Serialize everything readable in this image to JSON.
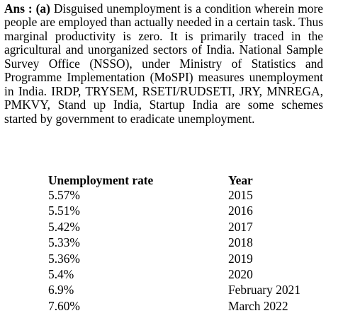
{
  "answer": {
    "label": "Ans : (a)",
    "text": "Disguised unemployment is a condition wherein more people are employed than actually needed in a certain task. Thus marginal productivity is zero. It is primarily traced in the agricultural and unorganized sectors of India. National Sample Survey Office (NSSO), under Ministry of Statistics and Programme Implementation (MoSPI) measures unemployment in India. IRDP, TRYSEM, RSETI/RUDSETI, JRY, MNREGA, PMKVY, Stand up India, Startup India are some schemes started by government to eradicate unemployment."
  },
  "table": {
    "headers": [
      "Unemployment rate",
      "Year"
    ],
    "rows": [
      [
        "5.57%",
        "2015"
      ],
      [
        "5.51%",
        "2016"
      ],
      [
        "5.42%",
        "2017"
      ],
      [
        "5.33%",
        "2018"
      ],
      [
        "5.36%",
        "2019"
      ],
      [
        "5.4%",
        "2020"
      ],
      [
        "6.9%",
        "February 2021"
      ],
      [
        "7.60%",
        "March 2022"
      ]
    ]
  }
}
